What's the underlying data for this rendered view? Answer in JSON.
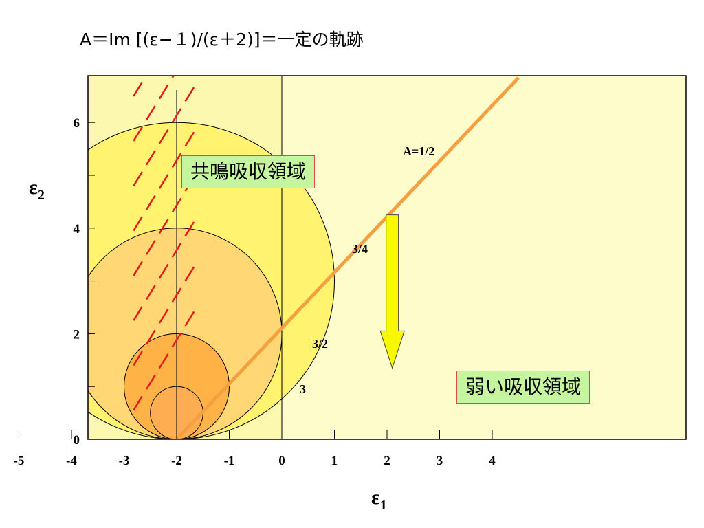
{
  "title": "A＝Im [(ε−１)/(ε＋2)]＝一定の軌跡",
  "axes": {
    "xlabel": "ε",
    "xlabel_sub": "1",
    "ylabel": "ε",
    "ylabel_sub": "2",
    "xticks": [
      "-5",
      "-4",
      "-3",
      "-2",
      "-1",
      "0",
      "1",
      "2",
      "3",
      "4"
    ],
    "yticks": [
      "0",
      "2",
      "4",
      "6"
    ]
  },
  "circle_labels": [
    "A=1/2",
    "3/4",
    "3/2",
    "3"
  ],
  "regions": {
    "resonance": "共鳴吸収領域",
    "weak": "弱い吸収領域"
  },
  "colors": {
    "plot_background": "#fffccc",
    "circle_large": "#fff370",
    "circle_medium": "#ffd774",
    "circle_small": "#ffb347",
    "orange_line": "#f5a040",
    "dashed_lines": "#e81818",
    "arrow_fill": "#f8f800"
  },
  "chart_data": {
    "type": "diagram",
    "xlim": [
      -6.1,
      5.7
    ],
    "ylim": [
      0,
      6.85
    ],
    "circles": [
      {
        "label": "A=1/2",
        "A": 0.5,
        "center": [
          -2,
          3
        ],
        "radius": 3
      },
      {
        "label": "3/4",
        "A": 0.75,
        "center": [
          -2,
          2
        ],
        "radius": 2
      },
      {
        "label": "3/2",
        "A": 1.5,
        "center": [
          -2,
          1
        ],
        "radius": 1
      },
      {
        "label": "3",
        "A": 3,
        "center": [
          -2,
          0.5
        ],
        "radius": 0.5
      }
    ],
    "orange_line": {
      "from": [
        -2,
        0
      ],
      "to": [
        4.5,
        6.85
      ]
    },
    "vertical_lines_x": [
      -2,
      0
    ],
    "arrow": {
      "x": 2.1,
      "from_y": 4.25,
      "to_y": 1.35
    }
  }
}
